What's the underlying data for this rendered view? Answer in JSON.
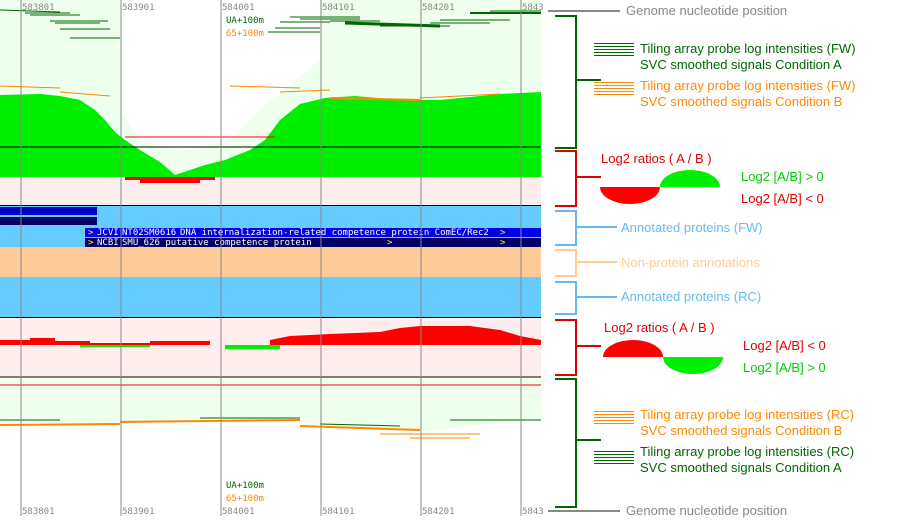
{
  "axis": {
    "ticks": [
      "583801",
      "583901",
      "584001",
      "584101",
      "584201",
      "5843"
    ]
  },
  "track_labels": {
    "top_green": "UA+100m",
    "top_orange": "65+100m",
    "bottom_green": "UA+100m",
    "bottom_orange": "65+100m"
  },
  "annotations": {
    "jcvi": {
      "prefix": ">",
      "source": "JCVI",
      "id": "NT02SM0616",
      "desc": "DNA internalization-related competence protein ComEC/Rec2",
      "arrow": ">"
    },
    "ncbi": {
      "prefix": ">",
      "source": "NCBI",
      "id": "SMU_626",
      "desc": "putative competence protein",
      "arrow1": ">",
      "arrow2": ">"
    }
  },
  "legend": {
    "genome_top": "Genome nucleotide position",
    "fw_a_line1": "Tiling array probe log intensities (FW)",
    "fw_a_line2": "SVC smoothed signals Condition A",
    "fw_b_line1": "Tiling array probe log intensities (FW)",
    "fw_b_line2": "SVC smoothed signals Condition B",
    "ratio_top_title": "Log2 ratios ( A / B )",
    "ratio_top_pos": "Log2 [A/B] > 0",
    "ratio_top_neg": "Log2 [A/B] < 0",
    "ann_fw": "Annotated proteins (FW)",
    "non_protein": "Non-protein annotations",
    "ann_rc": "Annotated proteins (RC)",
    "ratio_bot_title": "Log2 ratios ( A / B )",
    "ratio_bot_neg": "Log2 [A/B] < 0",
    "ratio_bot_pos": "Log2 [A/B] > 0",
    "rc_b_line1": "Tiling array probe log intensities (RC)",
    "rc_b_line2": "SVC smoothed signals Condition B",
    "rc_a_line1": "Tiling array probe log intensities (RC)",
    "rc_a_line2": "SVC smoothed signals Condition A",
    "genome_bottom": "Genome nucleotide position"
  },
  "colors": {
    "conditionA": "#006600",
    "conditionB": "#ff8800",
    "ratio_pos": "#00ee00",
    "ratio_neg": "#ff0000",
    "annotation": "#66ccff",
    "non_protein": "#ffcc99"
  }
}
